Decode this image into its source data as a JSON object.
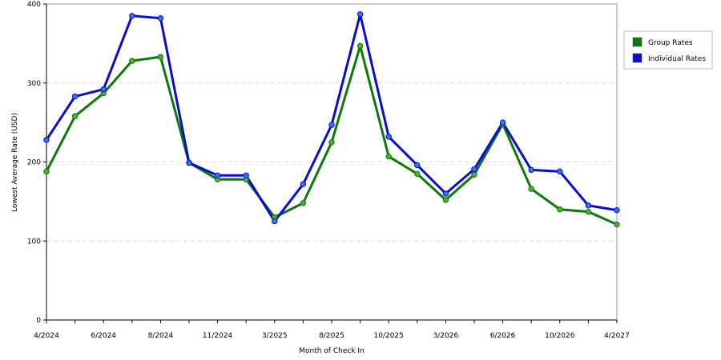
{
  "chart_data": {
    "type": "line",
    "title": "",
    "xlabel": "Month of Check In",
    "ylabel": "Lowest Average Rate (USD)",
    "ylim": [
      0,
      400
    ],
    "yticks": [
      0,
      100,
      200,
      300,
      400
    ],
    "grid": true,
    "legend_position": "right",
    "x_tick_labels": [
      {
        "label": "4/2024",
        "index": 0
      },
      {
        "label": "6/2024",
        "index": 2
      },
      {
        "label": "8/2024",
        "index": 4
      },
      {
        "label": "11/2024",
        "index": 6
      },
      {
        "label": "3/2025",
        "index": 8
      },
      {
        "label": "8/2025",
        "index": 10
      },
      {
        "label": "10/2025",
        "index": 12
      },
      {
        "label": "3/2026",
        "index": 14
      },
      {
        "label": "6/2026",
        "index": 16
      },
      {
        "label": "10/2026",
        "index": 18
      },
      {
        "label": "4/2027",
        "index": 20
      }
    ],
    "series": [
      {
        "name": "Group Rates",
        "color": "#0a7a0a",
        "values": [
          188,
          258,
          287,
          328,
          333,
          199,
          178,
          178,
          130,
          148,
          225,
          347,
          207,
          185,
          152,
          184,
          248,
          166,
          140,
          137,
          121
        ]
      },
      {
        "name": "Individual Rates",
        "color": "#0a0ad0",
        "values": [
          228,
          283,
          292,
          385,
          382,
          199,
          183,
          183,
          125,
          172,
          247,
          387,
          232,
          196,
          160,
          191,
          250,
          190,
          188,
          145,
          139
        ]
      }
    ]
  }
}
